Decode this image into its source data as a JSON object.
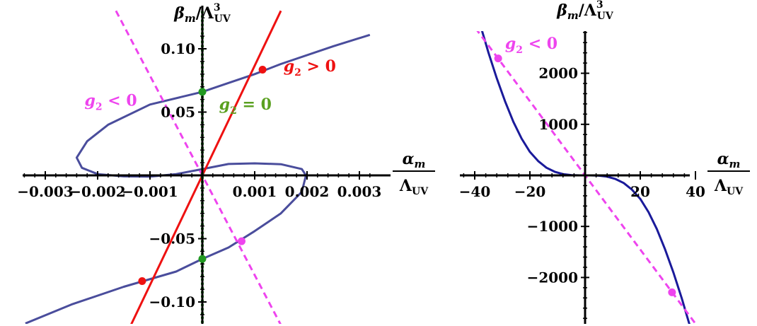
{
  "chart_data": [
    {
      "type": "line",
      "ylabel": {
        "base": "β",
        "sub": "m",
        "sep": "/Λ",
        "sup": "3",
        "sub2": "UV"
      },
      "xlabel": {
        "num": "α",
        "num_sub": "m",
        "den": "Λ",
        "den_sub": "UV"
      },
      "xlim": [
        -0.00335,
        0.00335
      ],
      "ylim": [
        -0.115,
        0.115
      ],
      "x_ticks": [
        {
          "v": -0.003,
          "label": "−0.003"
        },
        {
          "v": -0.002,
          "label": "−0.002"
        },
        {
          "v": -0.001,
          "label": "−0.001"
        },
        {
          "v": 0.001,
          "label": "0.001"
        },
        {
          "v": 0.002,
          "label": "0.002"
        },
        {
          "v": 0.003,
          "label": "0.003"
        }
      ],
      "y_ticks": [
        {
          "v": -0.1,
          "label": "−0.10"
        },
        {
          "v": -0.05,
          "label": "−0.05"
        },
        {
          "v": 0.05,
          "label": "0.05"
        },
        {
          "v": 0.1,
          "label": "0.10"
        }
      ],
      "series": [
        {
          "id": "curve",
          "color": "#4a4d9c",
          "style": "solid",
          "points": [
            [
              -0.00338,
              -0.117
            ],
            [
              -0.0025,
              -0.102
            ],
            [
              -0.0015,
              -0.088
            ],
            [
              -0.0005,
              -0.076
            ],
            [
              0,
              -0.066
            ],
            [
              0.0005,
              -0.057
            ],
            [
              0.001,
              -0.044
            ],
            [
              0.0015,
              -0.03
            ],
            [
              0.0019,
              -0.013
            ],
            [
              0.00198,
              0
            ],
            [
              0.0019,
              0.005
            ],
            [
              0.0015,
              0.0088
            ],
            [
              0.001,
              0.0095
            ],
            [
              0.0005,
              0.009
            ],
            [
              0,
              0.005
            ],
            [
              -0.0005,
              0.001
            ],
            [
              -0.001,
              -0.001
            ],
            [
              -0.0015,
              -0.0008
            ],
            [
              -0.002,
              0.001
            ],
            [
              -0.0023,
              0.006
            ],
            [
              -0.0024,
              0.014
            ],
            [
              -0.0022,
              0.027
            ],
            [
              -0.0018,
              0.04
            ],
            [
              -0.001,
              0.056
            ],
            [
              0,
              0.066
            ],
            [
              0.0005,
              0.073
            ],
            [
              0.001,
              0.08
            ],
            [
              0.0015,
              0.088
            ],
            [
              0.0025,
              0.102
            ],
            [
              0.0032,
              0.111
            ]
          ]
        },
        {
          "id": "g2-positive",
          "label": "g₂ > 0",
          "color": "#ee1111",
          "style": "solid",
          "points": [
            [
              -0.0015,
              -0.13
            ],
            [
              0.0015,
              0.13
            ]
          ]
        },
        {
          "id": "g2-negative",
          "label": "g₂ < 0",
          "color": "#ee44ee",
          "style": "dashed",
          "points": [
            [
              -0.00165,
              0.13
            ],
            [
              0.00165,
              -0.13
            ]
          ]
        },
        {
          "id": "g2-zero",
          "label": "g₂ = 0",
          "color": "#229922",
          "style": "dotted",
          "points": [
            [
              0,
              -0.13
            ],
            [
              0,
              0.13
            ]
          ]
        }
      ],
      "markers": [
        {
          "x": 0.00115,
          "y": 0.0835,
          "color": "#ee1111"
        },
        {
          "x": -0.00115,
          "y": -0.0835,
          "color": "#ee1111"
        },
        {
          "x": 0.00075,
          "y": -0.052,
          "color": "#ee44ee"
        },
        {
          "x": 0,
          "y": 0.066,
          "color": "#229922"
        },
        {
          "x": 0,
          "y": -0.066,
          "color": "#229922"
        }
      ],
      "annotations": [
        {
          "text": "g₂ > 0",
          "x": 0.00155,
          "y": 0.082,
          "color": "#ee1111"
        },
        {
          "text": "g₂ < 0",
          "x": -0.00225,
          "y": 0.055,
          "color": "#ee44ee"
        },
        {
          "text": "g₂ = 0",
          "x": 0.00032,
          "y": 0.052,
          "color": "#5aa020"
        }
      ]
    },
    {
      "type": "line",
      "ylabel": {
        "base": "β",
        "sub": "m",
        "sep": "/Λ",
        "sup": "3",
        "sub2": "UV"
      },
      "xlabel": {
        "num": "α",
        "num_sub": "m",
        "den": "Λ",
        "den_sub": "UV"
      },
      "xlim": [
        -60,
        60
      ],
      "ylim": [
        -2840,
        2840
      ],
      "x_ticks": [
        {
          "v": -40,
          "label": "−40"
        },
        {
          "v": -20,
          "label": "−20"
        },
        {
          "v": 20,
          "label": "20"
        },
        {
          "v": 40,
          "label": "40"
        }
      ],
      "y_ticks": [
        {
          "v": -2000,
          "label": "−2000"
        },
        {
          "v": -1000,
          "label": "−1000"
        },
        {
          "v": 1000,
          "label": "1000"
        },
        {
          "v": 2000,
          "label": "2000"
        }
      ],
      "series": [
        {
          "id": "curve",
          "color": "#1a1a9a",
          "style": "solid",
          "points": [
            [
              -38,
              2950
            ],
            [
              -35,
              2400
            ],
            [
              -32,
              1900
            ],
            [
              -29,
              1450
            ],
            [
              -26,
              1050
            ],
            [
              -23,
              720
            ],
            [
              -20,
              460
            ],
            [
              -17,
              280
            ],
            [
              -14,
              150
            ],
            [
              -11,
              70
            ],
            [
              -8,
              25
            ],
            [
              -5,
              6
            ],
            [
              -2,
              0.5
            ],
            [
              0,
              0
            ],
            [
              2,
              -0.5
            ],
            [
              5,
              -6
            ],
            [
              8,
              -25
            ],
            [
              11,
              -70
            ],
            [
              14,
              -150
            ],
            [
              17,
              -280
            ],
            [
              20,
              -460
            ],
            [
              23,
              -720
            ],
            [
              26,
              -1050
            ],
            [
              29,
              -1450
            ],
            [
              32,
              -1900
            ],
            [
              35,
              -2400
            ],
            [
              38,
              -2950
            ]
          ]
        },
        {
          "id": "g2-negative",
          "label": "g₂ < 0",
          "color": "#ee44ee",
          "style": "dashed",
          "points": [
            [
              -42,
              3050
            ],
            [
              42,
              -3050
            ]
          ]
        }
      ],
      "markers": [
        {
          "x": -31.5,
          "y": 2290,
          "color": "#ee44ee"
        },
        {
          "x": 31.5,
          "y": -2290,
          "color": "#ee44ee"
        }
      ],
      "annotations": [
        {
          "text": "g₂ < 0",
          "x": -29,
          "y": 2480,
          "color": "#ee44ee"
        }
      ]
    }
  ]
}
